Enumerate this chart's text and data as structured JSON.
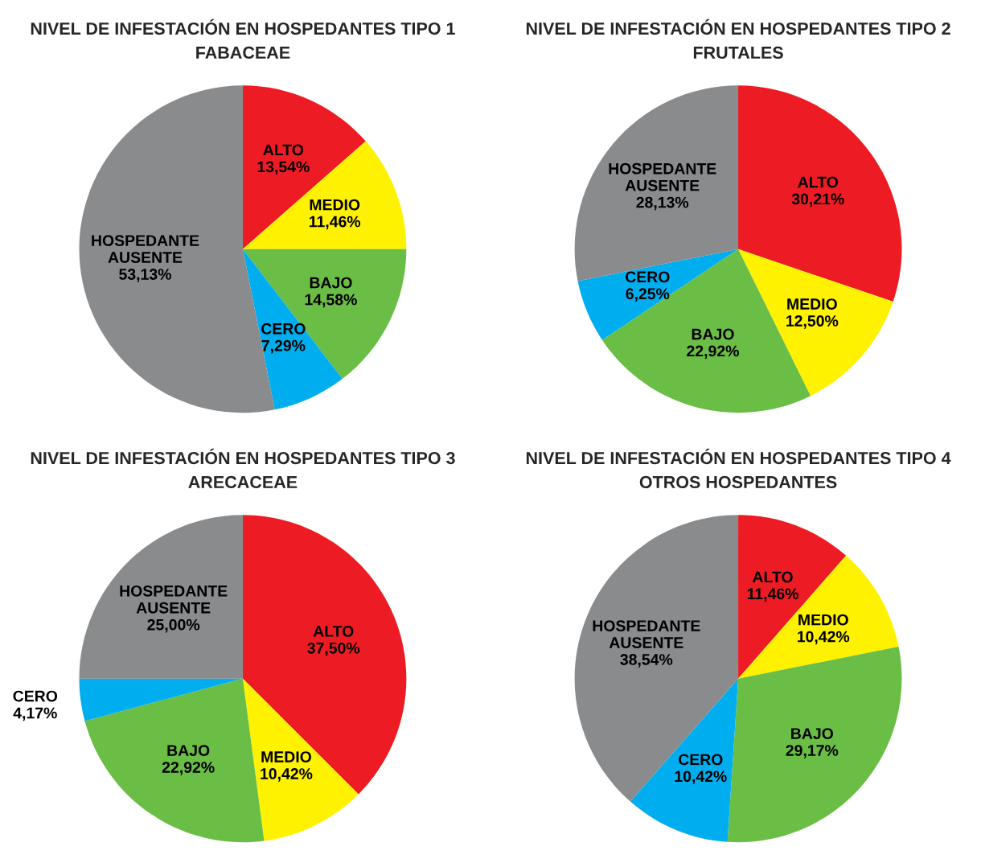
{
  "chart_data": [
    {
      "type": "pie",
      "title": "NIVEL DE INFESTACIÓN EN HOSPEDANTES TIPO 1",
      "subtitle": "FABACEAE",
      "categories": [
        "ALTO",
        "MEDIO",
        "BAJO",
        "CERO",
        "HOSPEDANTE AUSENTE"
      ],
      "values": [
        13.54,
        11.46,
        14.58,
        7.29,
        53.13
      ],
      "value_labels": [
        "13,54%",
        "11,46%",
        "14,58%",
        "7,29%",
        "53,13%"
      ],
      "colors": [
        "#ed1c24",
        "#fff200",
        "#6abd45",
        "#00aeef",
        "#898b8c"
      ],
      "legend": false
    },
    {
      "type": "pie",
      "title": "NIVEL DE INFESTACIÓN EN HOSPEDANTES TIPO 2",
      "subtitle": "FRUTALES",
      "categories": [
        "ALTO",
        "MEDIO",
        "BAJO",
        "CERO",
        "HOSPEDANTE AUSENTE"
      ],
      "values": [
        30.21,
        12.5,
        22.92,
        6.25,
        28.13
      ],
      "value_labels": [
        "30,21%",
        "12,50%",
        "22,92%",
        "6,25%",
        "28,13%"
      ],
      "colors": [
        "#ed1c24",
        "#fff200",
        "#6abd45",
        "#00aeef",
        "#898b8c"
      ],
      "legend": false
    },
    {
      "type": "pie",
      "title": "NIVEL DE INFESTACIÓN EN HOSPEDANTES TIPO 3",
      "subtitle": "ARECACEAE",
      "categories": [
        "ALTO",
        "MEDIO",
        "BAJO",
        "CERO",
        "HOSPEDANTE AUSENTE"
      ],
      "values": [
        37.5,
        10.42,
        22.92,
        4.17,
        25.0
      ],
      "value_labels": [
        "37,50%",
        "10,42%",
        "22,92%",
        "4,17%",
        "25,00%"
      ],
      "colors": [
        "#ed1c24",
        "#fff200",
        "#6abd45",
        "#00aeef",
        "#898b8c"
      ],
      "legend": false
    },
    {
      "type": "pie",
      "title": "NIVEL DE INFESTACIÓN EN HOSPEDANTES TIPO 4",
      "subtitle": "OTROS HOSPEDANTES",
      "categories": [
        "ALTO",
        "MEDIO",
        "BAJO",
        "CERO",
        "HOSPEDANTE AUSENTE"
      ],
      "values": [
        11.46,
        10.42,
        29.17,
        10.42,
        38.54
      ],
      "value_labels": [
        "11,46%",
        "10,42%",
        "29,17%",
        "10,42%",
        "38,54%"
      ],
      "colors": [
        "#ed1c24",
        "#fff200",
        "#6abd45",
        "#00aeef",
        "#898b8c"
      ],
      "legend": false
    }
  ]
}
